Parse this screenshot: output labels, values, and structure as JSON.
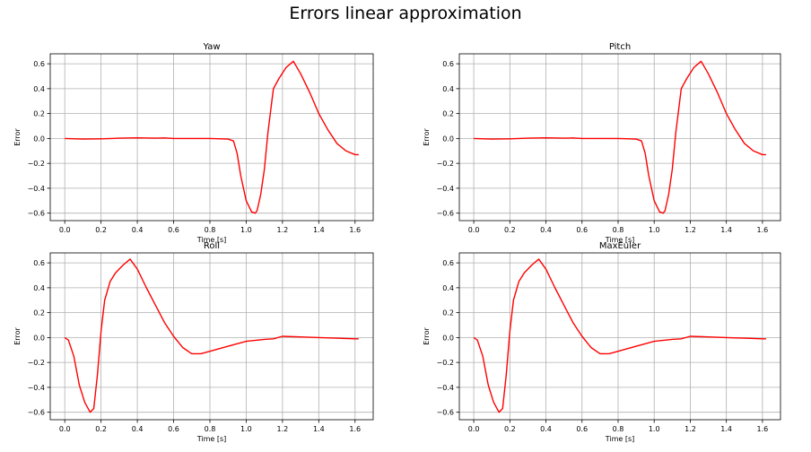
{
  "figure": {
    "title": "Errors linear approximation"
  },
  "chart_data": [
    {
      "type": "line",
      "title": "Yaw",
      "xlabel": "Time [s]",
      "ylabel": "Error",
      "xlim": [
        -0.08,
        1.7
      ],
      "ylim": [
        -0.66,
        0.68
      ],
      "xticks": [
        "0.0",
        "0.2",
        "0.4",
        "0.6",
        "0.8",
        "1.0",
        "1.2",
        "1.4",
        "1.6"
      ],
      "yticks": [
        "−0.6",
        "−0.4",
        "−0.2",
        "0.0",
        "0.2",
        "0.4",
        "0.6"
      ],
      "grid": true,
      "color": "#ff0000",
      "series": [
        {
          "x": [
            0,
            0.1,
            0.2,
            0.3,
            0.4,
            0.5,
            0.55,
            0.6,
            0.7,
            0.8,
            0.9,
            0.93,
            0.95,
            0.97,
            1.0,
            1.03,
            1.05,
            1.06,
            1.08,
            1.1,
            1.12,
            1.15,
            1.18,
            1.22,
            1.26,
            1.3,
            1.35,
            1.4,
            1.45,
            1.5,
            1.55,
            1.6,
            1.62
          ],
          "y": [
            0,
            -0.005,
            -0.003,
            0.002,
            0.005,
            0.002,
            0.004,
            0,
            0,
            0,
            -0.005,
            -0.02,
            -0.12,
            -0.3,
            -0.5,
            -0.59,
            -0.6,
            -0.58,
            -0.45,
            -0.25,
            0.05,
            0.4,
            0.48,
            0.57,
            0.62,
            0.52,
            0.37,
            0.2,
            0.07,
            -0.04,
            -0.1,
            -0.13,
            -0.13
          ]
        }
      ]
    },
    {
      "type": "line",
      "title": "Pitch",
      "xlabel": "Time [s]",
      "ylabel": "Error",
      "xlim": [
        -0.08,
        1.7
      ],
      "ylim": [
        -0.66,
        0.68
      ],
      "xticks": [
        "0.0",
        "0.2",
        "0.4",
        "0.6",
        "0.8",
        "1.0",
        "1.2",
        "1.4",
        "1.6"
      ],
      "yticks": [
        "−0.6",
        "−0.4",
        "−0.2",
        "0.0",
        "0.2",
        "0.4",
        "0.6"
      ],
      "grid": true,
      "color": "#ff0000",
      "series": [
        {
          "x": [
            0,
            0.1,
            0.2,
            0.3,
            0.4,
            0.5,
            0.55,
            0.6,
            0.7,
            0.8,
            0.9,
            0.93,
            0.95,
            0.97,
            1.0,
            1.03,
            1.05,
            1.06,
            1.08,
            1.1,
            1.12,
            1.15,
            1.18,
            1.22,
            1.26,
            1.3,
            1.35,
            1.4,
            1.45,
            1.5,
            1.55,
            1.6,
            1.62
          ],
          "y": [
            0,
            -0.005,
            -0.003,
            0.002,
            0.005,
            0.002,
            0.004,
            0,
            0,
            0,
            -0.005,
            -0.02,
            -0.12,
            -0.3,
            -0.5,
            -0.59,
            -0.6,
            -0.58,
            -0.45,
            -0.25,
            0.05,
            0.4,
            0.48,
            0.57,
            0.62,
            0.52,
            0.37,
            0.2,
            0.07,
            -0.04,
            -0.1,
            -0.13,
            -0.13
          ]
        }
      ]
    },
    {
      "type": "line",
      "title": "Roll",
      "xlabel": "Time [s]",
      "ylabel": "Error",
      "xlim": [
        -0.08,
        1.7
      ],
      "ylim": [
        -0.66,
        0.68
      ],
      "xticks": [
        "0.0",
        "0.2",
        "0.4",
        "0.6",
        "0.8",
        "1.0",
        "1.2",
        "1.4",
        "1.6"
      ],
      "yticks": [
        "−0.6",
        "−0.4",
        "−0.2",
        "0.0",
        "0.2",
        "0.4",
        "0.6"
      ],
      "grid": true,
      "color": "#ff0000",
      "series": [
        {
          "x": [
            0,
            0.02,
            0.05,
            0.08,
            0.11,
            0.14,
            0.16,
            0.18,
            0.2,
            0.22,
            0.25,
            0.28,
            0.32,
            0.36,
            0.4,
            0.45,
            0.5,
            0.55,
            0.6,
            0.65,
            0.7,
            0.75,
            0.8,
            0.9,
            1.0,
            1.1,
            1.15,
            1.2,
            1.3,
            1.4,
            1.5,
            1.6,
            1.62
          ],
          "y": [
            0,
            -0.02,
            -0.15,
            -0.38,
            -0.52,
            -0.6,
            -0.57,
            -0.3,
            0.05,
            0.3,
            0.45,
            0.52,
            0.58,
            0.63,
            0.55,
            0.4,
            0.26,
            0.12,
            0.01,
            -0.08,
            -0.13,
            -0.13,
            -0.11,
            -0.07,
            -0.03,
            -0.015,
            -0.01,
            0.01,
            0.005,
            0,
            -0.005,
            -0.01,
            -0.01
          ]
        }
      ]
    },
    {
      "type": "line",
      "title": "MaxEuler",
      "xlabel": "Time [s]",
      "ylabel": "Error",
      "xlim": [
        -0.08,
        1.7
      ],
      "ylim": [
        -0.66,
        0.68
      ],
      "xticks": [
        "0.0",
        "0.2",
        "0.4",
        "0.6",
        "0.8",
        "1.0",
        "1.2",
        "1.4",
        "1.6"
      ],
      "yticks": [
        "−0.6",
        "−0.4",
        "−0.2",
        "0.0",
        "0.2",
        "0.4",
        "0.6"
      ],
      "grid": true,
      "color": "#ff0000",
      "series": [
        {
          "x": [
            0,
            0.02,
            0.05,
            0.08,
            0.11,
            0.14,
            0.16,
            0.18,
            0.2,
            0.22,
            0.25,
            0.28,
            0.32,
            0.36,
            0.4,
            0.45,
            0.5,
            0.55,
            0.6,
            0.65,
            0.7,
            0.75,
            0.8,
            0.9,
            1.0,
            1.1,
            1.15,
            1.2,
            1.3,
            1.4,
            1.5,
            1.6,
            1.62
          ],
          "y": [
            0,
            -0.02,
            -0.15,
            -0.38,
            -0.52,
            -0.6,
            -0.57,
            -0.3,
            0.05,
            0.3,
            0.45,
            0.52,
            0.58,
            0.63,
            0.55,
            0.4,
            0.26,
            0.12,
            0.01,
            -0.08,
            -0.13,
            -0.13,
            -0.11,
            -0.07,
            -0.03,
            -0.015,
            -0.01,
            0.01,
            0.005,
            0,
            -0.005,
            -0.01,
            -0.01
          ]
        }
      ]
    }
  ]
}
